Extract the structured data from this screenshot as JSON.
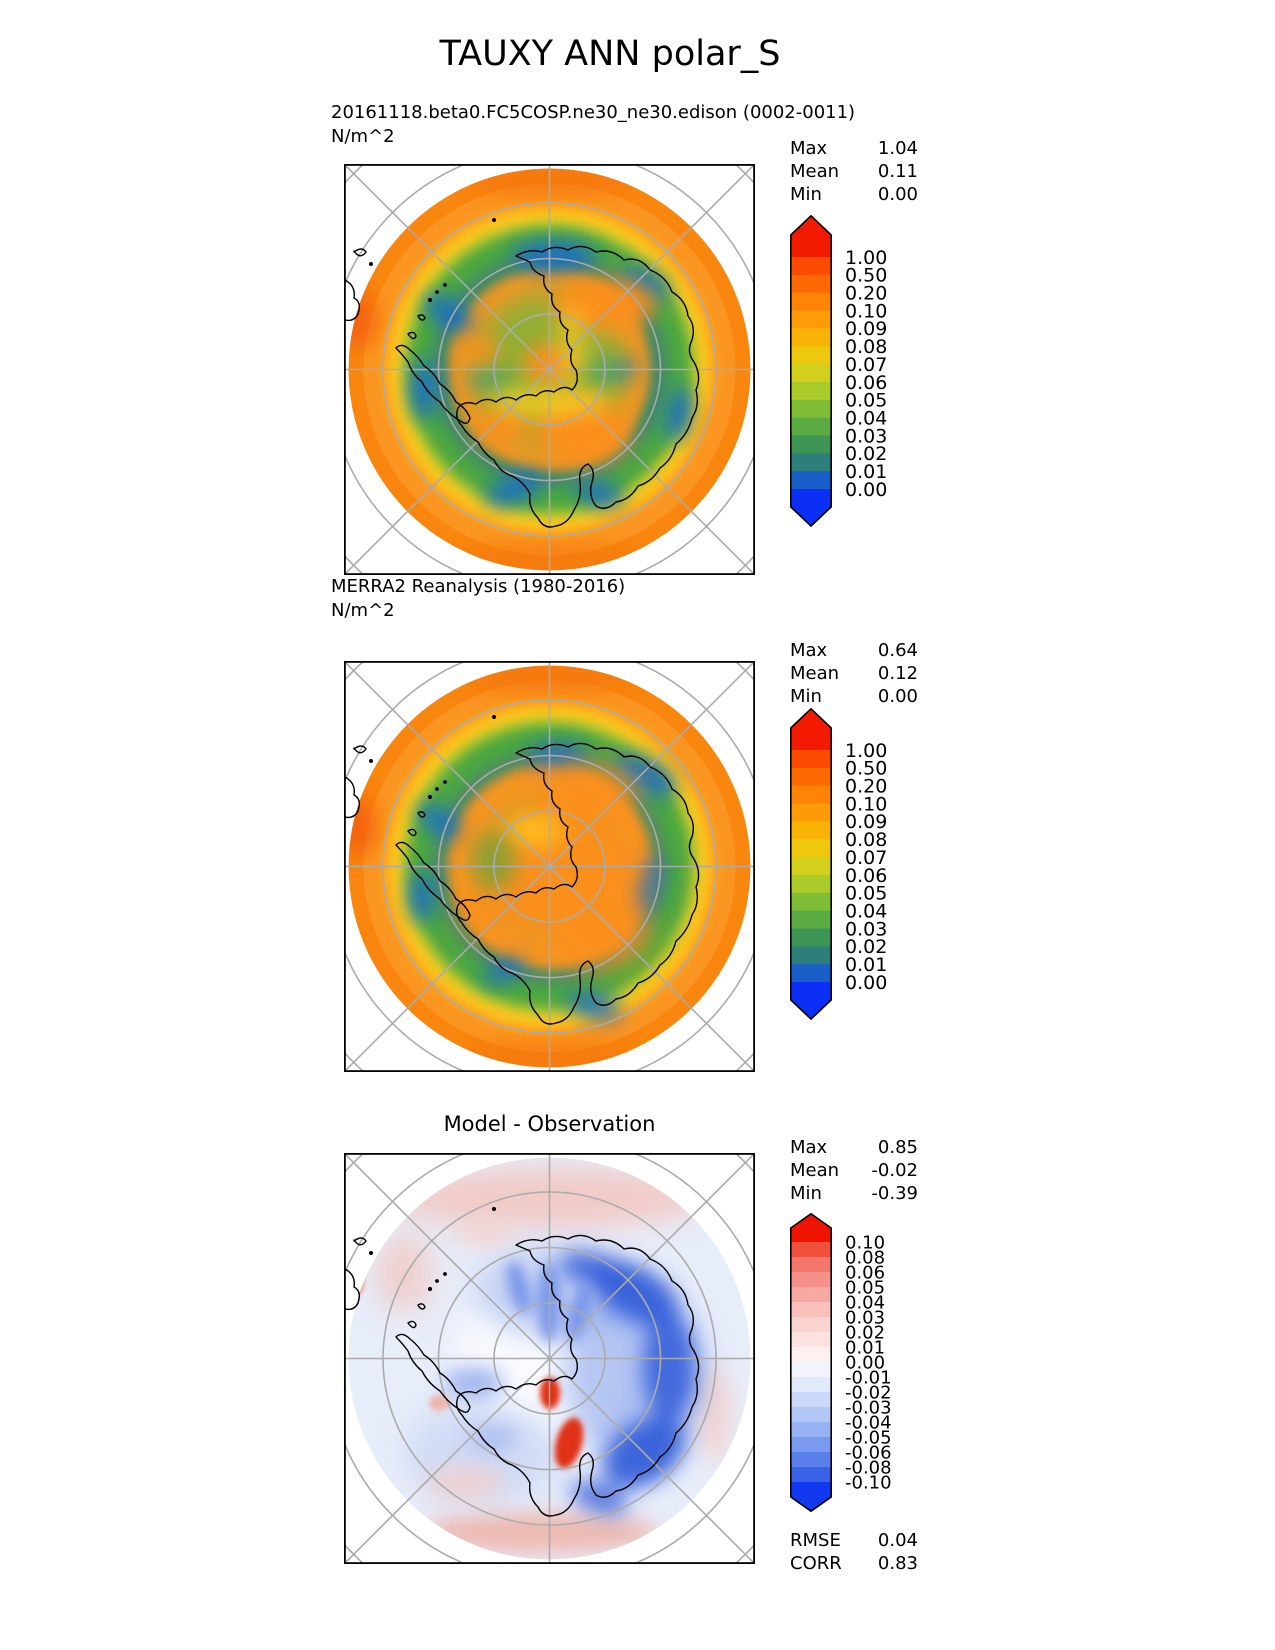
{
  "title": "TAUXY ANN polar_S",
  "panels": [
    {
      "id": "model",
      "header_line1": "20161118.beta0.FC5COSP.ne30_ne30.edison (0002-0011)",
      "header_line2": "N/m^2",
      "stats": [
        {
          "label": "Max",
          "value": "1.04"
        },
        {
          "label": "Mean",
          "value": "0.11"
        },
        {
          "label": "Min",
          "value": "0.00"
        }
      ],
      "colorbar": {
        "labels": [
          "1.00",
          "0.50",
          "0.20",
          "0.10",
          "0.09",
          "0.08",
          "0.07",
          "0.06",
          "0.05",
          "0.04",
          "0.03",
          "0.02",
          "0.01",
          "0.00"
        ],
        "band_colors": [
          "#fb4b00",
          "#fd6903",
          "#fe8306",
          "#fe9b07",
          "#f8b306",
          "#edc80e",
          "#d3cf1d",
          "#aacb2a",
          "#7fbd37",
          "#5aab44",
          "#3d9455",
          "#2e7f7c",
          "#1a5fc8"
        ],
        "top_color": "#f21b00",
        "bottom_color": "#0b2ff5"
      }
    },
    {
      "id": "reanalysis",
      "header_line1": "MERRA2 Reanalysis (1980-2016)",
      "header_line2": "N/m^2",
      "stats": [
        {
          "label": "Max",
          "value": "0.64"
        },
        {
          "label": "Mean",
          "value": "0.12"
        },
        {
          "label": "Min",
          "value": "0.00"
        }
      ],
      "colorbar": {
        "labels": [
          "1.00",
          "0.50",
          "0.20",
          "0.10",
          "0.09",
          "0.08",
          "0.07",
          "0.06",
          "0.05",
          "0.04",
          "0.03",
          "0.02",
          "0.01",
          "0.00"
        ],
        "band_colors": [
          "#fb4b00",
          "#fd6903",
          "#fe8306",
          "#fe9b07",
          "#f8b306",
          "#edc80e",
          "#d3cf1d",
          "#aacb2a",
          "#7fbd37",
          "#5aab44",
          "#3d9455",
          "#2e7f7c",
          "#1a5fc8"
        ],
        "top_color": "#f21b00",
        "bottom_color": "#0b2ff5"
      }
    },
    {
      "id": "difference",
      "title": "Model - Observation",
      "stats": [
        {
          "label": "Max",
          "value": "0.85"
        },
        {
          "label": "Mean",
          "value": "-0.02"
        },
        {
          "label": "Min",
          "value": "-0.39"
        }
      ],
      "colorbar": {
        "labels": [
          "0.10",
          "0.08",
          "0.06",
          "0.05",
          "0.04",
          "0.03",
          "0.02",
          "0.01",
          "0.00",
          "-0.01",
          "-0.02",
          "-0.03",
          "-0.04",
          "-0.05",
          "-0.06",
          "-0.08",
          "-0.10"
        ],
        "band_colors": [
          "#f1503c",
          "#f3776b",
          "#f5908a",
          "#f7a9a3",
          "#f9bfba",
          "#fad2cf",
          "#fce3e1",
          "#fdf0ef",
          "#f1f4fd",
          "#e1e9fb",
          "#cbd9f9",
          "#b2c7f6",
          "#97b2f3",
          "#7a9af0",
          "#5b80ec",
          "#3a62e7"
        ],
        "top_color": "#ee1400",
        "bottom_color": "#1238f0"
      },
      "metrics": [
        {
          "label": "RMSE",
          "value": "0.04"
        },
        {
          "label": "CORR",
          "value": "0.83"
        }
      ]
    }
  ],
  "chart_data": [
    {
      "type": "heatmap",
      "subtype": "polar-stereographic contour map (Southern Hemisphere)",
      "title": "TAUXY ANN polar_S",
      "series_title": "20161118.beta0.FC5COSP.ne30_ne30.edison (0002-0011)",
      "units": "N/m^2",
      "colorbar_levels": [
        1.0,
        0.5,
        0.2,
        0.1,
        0.09,
        0.08,
        0.07,
        0.06,
        0.05,
        0.04,
        0.03,
        0.02,
        0.01,
        0.0
      ],
      "colorbar_extend": "both",
      "stats": {
        "max": 1.04,
        "mean": 0.11,
        "min": 0.0
      },
      "graticule": {
        "latitude_circles": [
          "80S",
          "70S",
          "60S",
          "50S",
          "40S"
        ],
        "meridian_step_deg": 45
      }
    },
    {
      "type": "heatmap",
      "subtype": "polar-stereographic contour map (Southern Hemisphere)",
      "series_title": "MERRA2 Reanalysis (1980-2016)",
      "units": "N/m^2",
      "colorbar_levels": [
        1.0,
        0.5,
        0.2,
        0.1,
        0.09,
        0.08,
        0.07,
        0.06,
        0.05,
        0.04,
        0.03,
        0.02,
        0.01,
        0.0
      ],
      "colorbar_extend": "both",
      "stats": {
        "max": 0.64,
        "mean": 0.12,
        "min": 0.0
      },
      "graticule": {
        "latitude_circles": [
          "80S",
          "70S",
          "60S",
          "50S",
          "40S"
        ],
        "meridian_step_deg": 45
      }
    },
    {
      "type": "heatmap",
      "subtype": "polar-stereographic difference map (Model minus Observation)",
      "series_title": "Model - Observation",
      "units": "N/m^2",
      "colorbar_levels": [
        0.1,
        0.08,
        0.06,
        0.05,
        0.04,
        0.03,
        0.02,
        0.01,
        0.0,
        -0.01,
        -0.02,
        -0.03,
        -0.04,
        -0.05,
        -0.06,
        -0.08,
        -0.1
      ],
      "colorbar_extend": "both",
      "stats": {
        "max": 0.85,
        "mean": -0.02,
        "min": -0.39
      },
      "rmse": 0.04,
      "corr": 0.83,
      "graticule": {
        "latitude_circles": [
          "80S",
          "70S",
          "60S",
          "50S",
          "40S"
        ],
        "meridian_step_deg": 45
      }
    }
  ]
}
